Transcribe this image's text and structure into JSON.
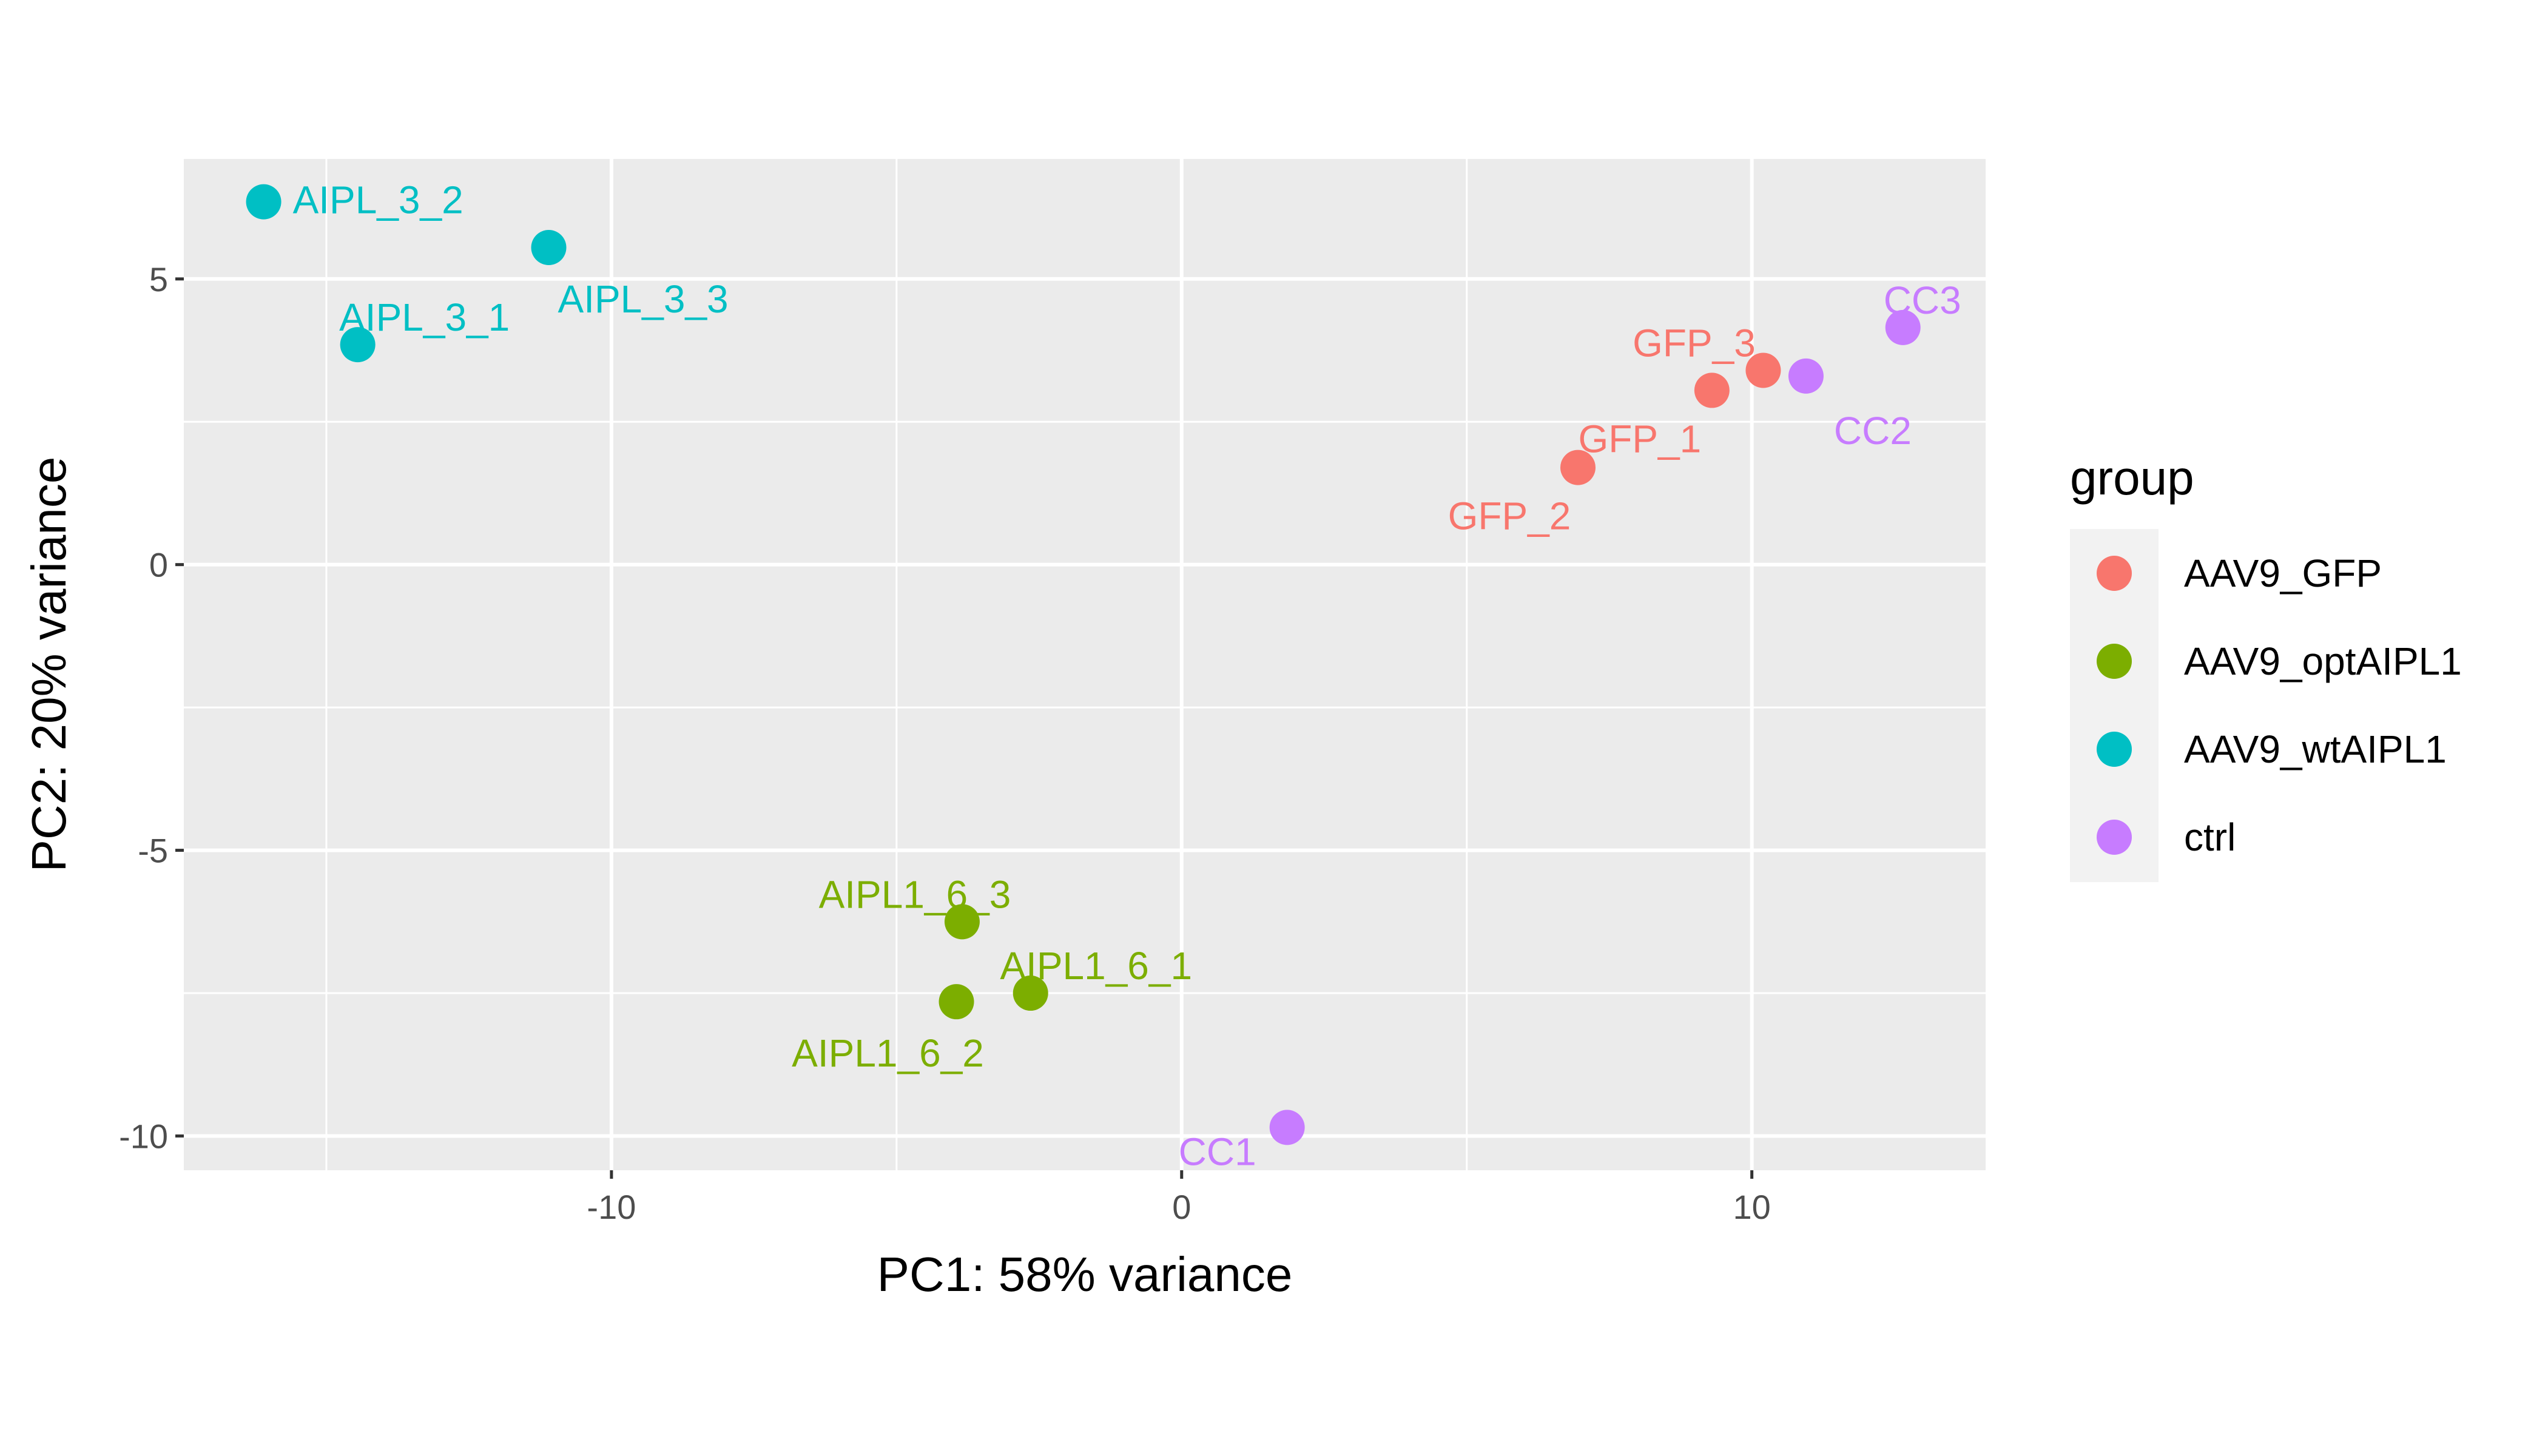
{
  "chart_data": {
    "type": "scatter",
    "title": "",
    "xlabel": "PC1: 58% variance",
    "ylabel": "PC2: 20% variance",
    "xlim": [
      -17.5,
      14.1
    ],
    "ylim": [
      -10.6,
      7.1
    ],
    "x_ticks": [
      -10,
      0,
      10
    ],
    "y_ticks": [
      5,
      0,
      -5,
      -10
    ],
    "grid": true,
    "legend": {
      "title": "group",
      "position": "right",
      "entries": [
        {
          "name": "AAV9_GFP",
          "color": "#F8766D"
        },
        {
          "name": "AAV9_optAIPL1",
          "color": "#7CAE00"
        },
        {
          "name": "AAV9_wtAIPL1",
          "color": "#00BFC4"
        },
        {
          "name": "ctrl",
          "color": "#C77CFF"
        }
      ]
    },
    "series": [
      {
        "name": "AAV9_GFP",
        "color": "#F8766D",
        "points": [
          {
            "label": "GFP_3",
            "x": 10.2,
            "y": 3.4
          },
          {
            "label": "GFP_1",
            "x": 9.3,
            "y": 3.05
          },
          {
            "label": "GFP_2",
            "x": 6.95,
            "y": 1.7
          }
        ]
      },
      {
        "name": "AAV9_optAIPL1",
        "color": "#7CAE00",
        "points": [
          {
            "label": "AIPL1_6_3",
            "x": -3.85,
            "y": -6.25
          },
          {
            "label": "AIPL1_6_1",
            "x": -2.65,
            "y": -7.5
          },
          {
            "label": "AIPL1_6_2",
            "x": -3.95,
            "y": -7.65
          }
        ]
      },
      {
        "name": "AAV9_wtAIPL1",
        "color": "#00BFC4",
        "points": [
          {
            "label": "AIPL_3_2",
            "x": -16.1,
            "y": 6.35
          },
          {
            "label": "AIPL_3_3",
            "x": -11.1,
            "y": 5.55
          },
          {
            "label": "AIPL_3_1",
            "x": -14.45,
            "y": 3.85
          }
        ]
      },
      {
        "name": "ctrl",
        "color": "#C77CFF",
        "points": [
          {
            "label": "CC3",
            "x": 12.65,
            "y": 4.15
          },
          {
            "label": "CC2",
            "x": 10.95,
            "y": 3.3
          },
          {
            "label": "CC1",
            "x": 1.85,
            "y": -9.85
          }
        ]
      }
    ]
  }
}
